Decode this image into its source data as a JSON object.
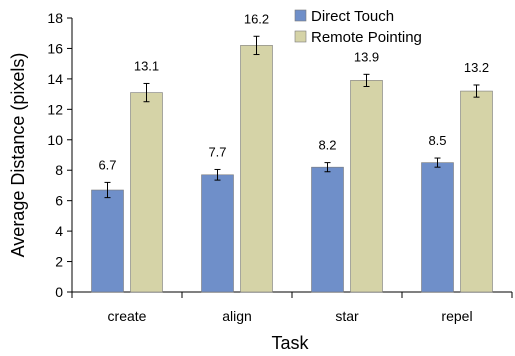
{
  "chart_data": {
    "type": "bar",
    "title": "",
    "xlabel": "Task",
    "ylabel": "Average Distance (pixels)",
    "categories": [
      "create",
      "align",
      "star",
      "repel"
    ],
    "ylim": [
      0,
      18
    ],
    "yticks": [
      0,
      2,
      4,
      6,
      8,
      10,
      12,
      14,
      16,
      18
    ],
    "grid": false,
    "legend_position": "top",
    "series": [
      {
        "name": "Direct Touch",
        "color": "#6f8fc9",
        "values": [
          6.7,
          7.7,
          8.2,
          8.5
        ],
        "errors": [
          0.5,
          0.35,
          0.3,
          0.3
        ],
        "labels": [
          "6.7",
          "7.7",
          "8.2",
          "8.5"
        ]
      },
      {
        "name": "Remote Pointing",
        "color": "#d5d3a7",
        "values": [
          13.1,
          16.2,
          13.9,
          13.2
        ],
        "errors": [
          0.6,
          0.6,
          0.4,
          0.4
        ],
        "labels": [
          "13.1",
          "16.2",
          "13.9",
          "13.2"
        ]
      }
    ]
  }
}
